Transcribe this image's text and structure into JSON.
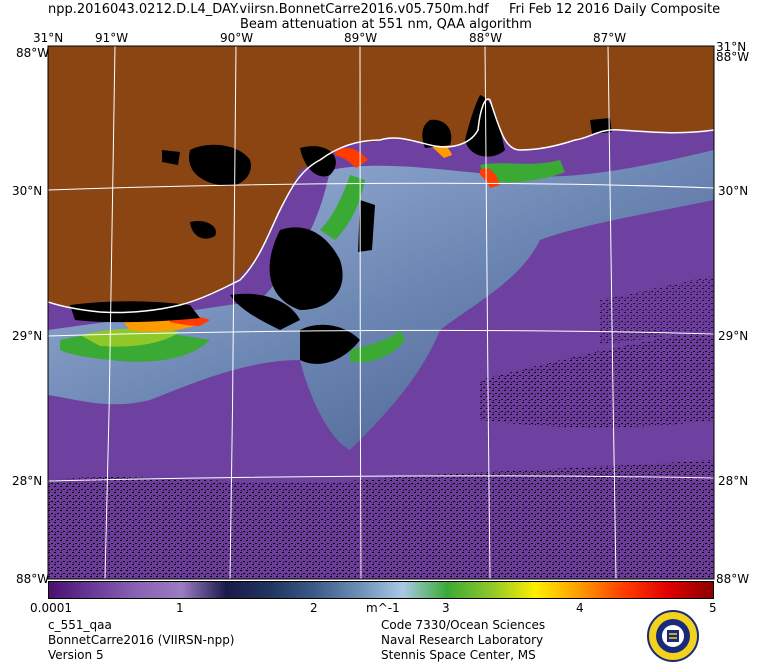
{
  "header": {
    "filename": "npp.2016043.0212.D.L4_DAY.viirsn.BonnetCarre2016.v05.750m.hdf",
    "date": "Fri Feb 12 2016 Daily Composite",
    "product": "Beam attenuation at 551 nm, QAA algorithm"
  },
  "map": {
    "top_lon_labels": [
      {
        "label": "31°N"
      },
      {
        "label": "91°W"
      },
      {
        "label": "90°W"
      },
      {
        "label": "89°W"
      },
      {
        "label": "88°W"
      },
      {
        "label": "87°W"
      },
      {
        "label": "31°N"
      }
    ],
    "corner_labels": [
      "88°W",
      "88°W",
      "88°W",
      "88°W"
    ],
    "lat_labels": [
      {
        "label": "30°N"
      },
      {
        "label": "29°N"
      },
      {
        "label": "28°N"
      }
    ],
    "colors": {
      "land": "#8b4513",
      "no_data": "#000000",
      "coast": "#ffffff",
      "grid": "#ffffff"
    }
  },
  "colorbar": {
    "tick_labels": [
      "0.0001",
      "1",
      "2",
      "3",
      "4",
      "5"
    ],
    "unit": "m^-1",
    "colors": [
      "#4b1070",
      "#6a3a98",
      "#8a62b4",
      "#9c7cc2",
      "#1a1a4a",
      "#1f3560",
      "#3c5a86",
      "#6d8fb6",
      "#a9c8e6",
      "#3aaa35",
      "#90c82a",
      "#ffee00",
      "#ff9a00",
      "#ff3c00",
      "#e00000",
      "#8b0000"
    ]
  },
  "footer": {
    "left": [
      "c_551_qaa",
      "BonnetCarre2016 (VIIRSN-npp)",
      "Version 5"
    ],
    "right": [
      "Code 7330/Ocean Sciences",
      "Naval Research Laboratory",
      "Stennis Space Center, MS"
    ]
  },
  "seal": {
    "icon": "nrl-seal-icon"
  }
}
